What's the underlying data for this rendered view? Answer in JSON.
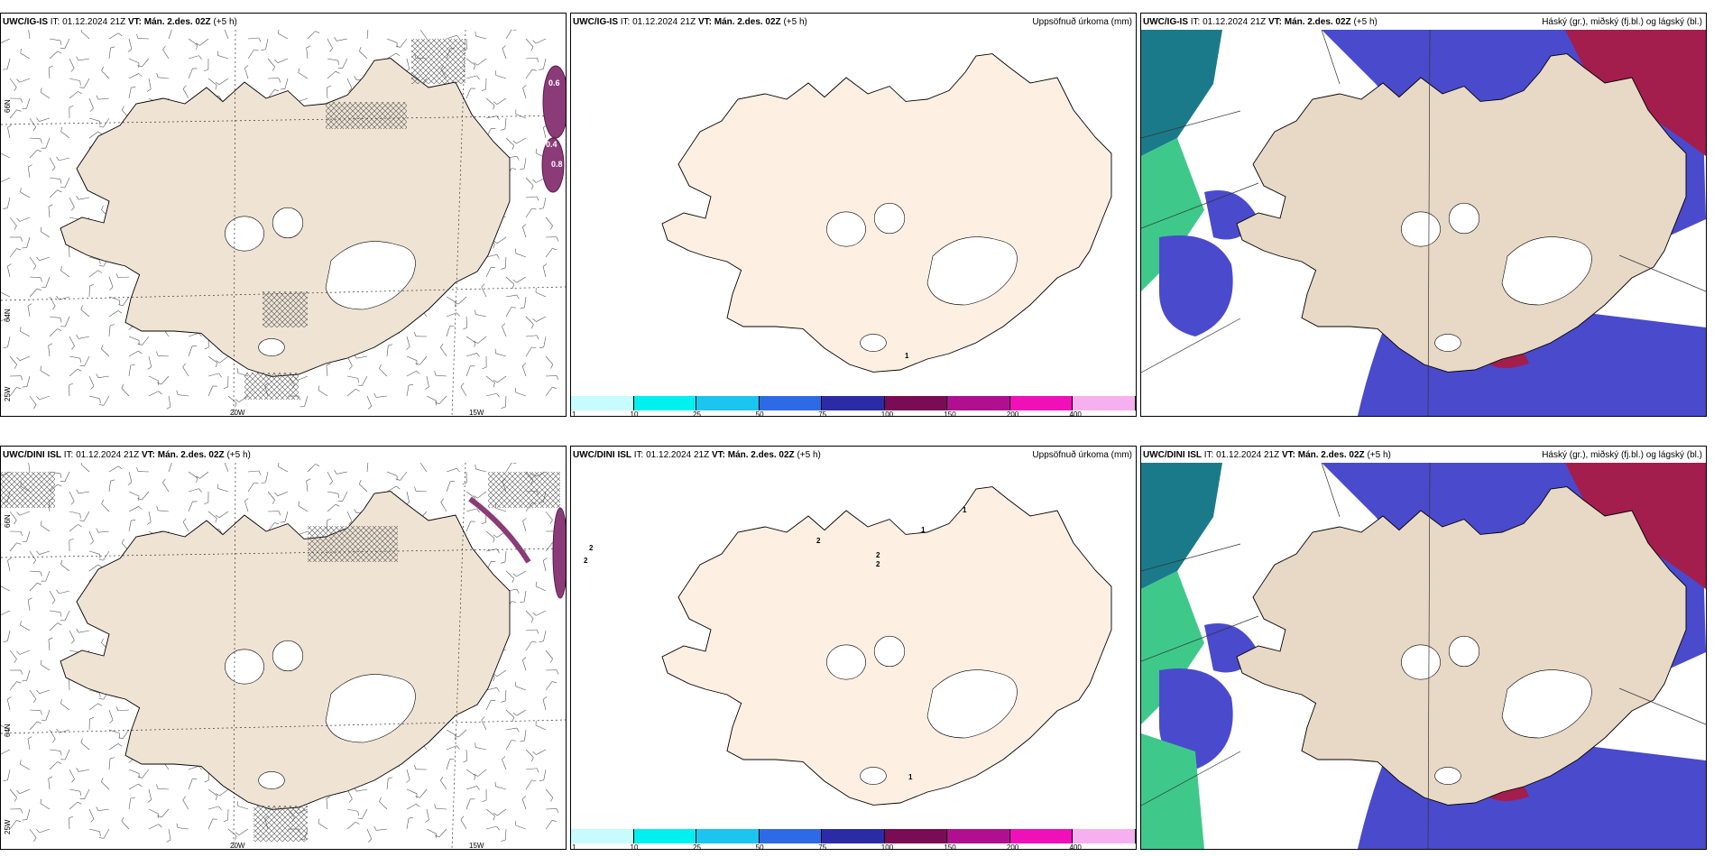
{
  "colors": {
    "land": "#efe3d4",
    "land_panel2": "#fdf0e2",
    "precip": [
      "#c8fbfb",
      "#00f0f0",
      "#1cc4f0",
      "#2d6ae6",
      "#2b2ba6",
      "#7a0b55",
      "#b0108f",
      "#f010b8",
      "#f7b0ef"
    ],
    "cloud_high": "#4a4acd",
    "cloud_low": "#a31d4d",
    "cloud_green": "#3ec98a",
    "cloud_teal": "#1b7a8a"
  },
  "rows": [
    {
      "model": "UWC/IG-IS",
      "panels": [
        {
          "model": "UWC/IG-IS",
          "it": "IT: 01.12.2024 21Z",
          "vt": "VT: Mán. 2.des. 02Z",
          "lead": "(+5 h)",
          "right": ""
        },
        {
          "model": "UWC/IG-IS",
          "it": "IT: 01.12.2024 21Z",
          "vt": "VT: Mán. 2.des. 02Z",
          "lead": "(+5 h)",
          "right": "Uppsöfnuð úrkoma (mm)"
        },
        {
          "model": "UWC/IG-IS",
          "it": "IT: 01.12.2024 21Z",
          "vt": "VT: Mán. 2.des. 02Z",
          "lead": "(+5 h)",
          "right": "Háský (gr.), miðský (fj.bl.) og lágský (bl.)"
        }
      ],
      "axis": {
        "lat1": "66N",
        "lat2": "64N",
        "lon_left": "25W",
        "lon1": "20W",
        "lon2": "15W"
      },
      "wave_labels": [
        "0.6",
        "0.4",
        "0.8"
      ],
      "precip_points": [
        "1"
      ]
    },
    {
      "model": "UWC/DINI ISL",
      "panels": [
        {
          "model": "UWC/DINI ISL",
          "it": "IT: 01.12.2024 21Z",
          "vt": "VT: Mán. 2.des. 02Z",
          "lead": "(+5 h)",
          "right": ""
        },
        {
          "model": "UWC/DINI ISL",
          "it": "IT: 01.12.2024 21Z",
          "vt": "VT: Mán. 2.des. 02Z",
          "lead": "(+5 h)",
          "right": "Uppsöfnuð úrkoma (mm)"
        },
        {
          "model": "UWC/DINI ISL",
          "it": "IT: 01.12.2024 21Z",
          "vt": "VT: Mán. 2.des. 02Z",
          "lead": "(+5 h)",
          "right": "Háský (gr.), miðský (fj.bl.) og lágský (bl.)"
        }
      ],
      "axis": {
        "lat1": "66N",
        "lat2": "64N",
        "lon_left": "25W",
        "lon1": "20W",
        "lon2": "15W"
      },
      "precip_points": [
        "2",
        "2",
        "2",
        "2",
        "1",
        "2",
        "1",
        "1"
      ]
    }
  ],
  "legend_ticks": [
    "1",
    "10",
    "25",
    "50",
    "75",
    "100",
    "150",
    "200",
    "400"
  ]
}
